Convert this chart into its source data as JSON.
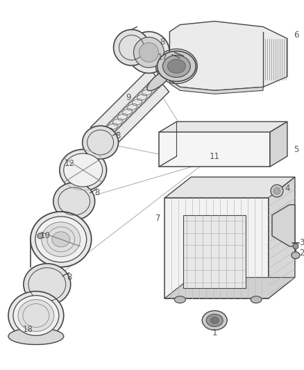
{
  "bg_color": "#ffffff",
  "line_color": "#444444",
  "label_color": "#555555",
  "fig_width": 4.38,
  "fig_height": 5.33,
  "dpi": 100
}
